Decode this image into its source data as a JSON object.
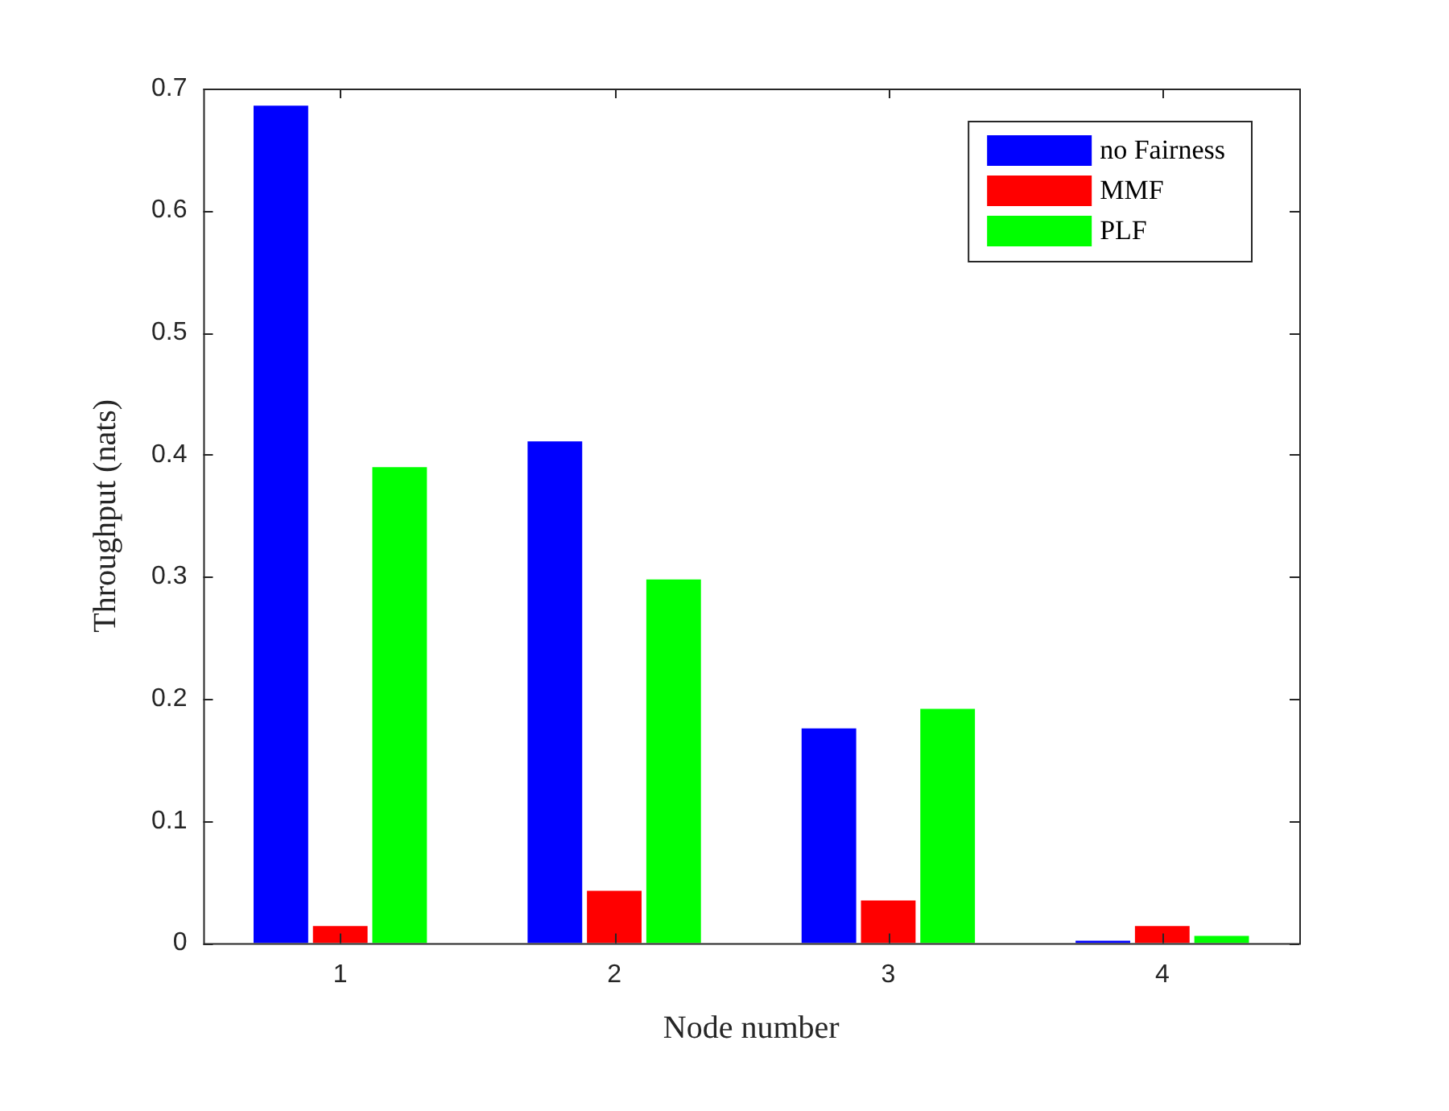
{
  "chart_data": {
    "type": "bar",
    "xlabel": "Node number",
    "ylabel": "Throughput (nats)",
    "categories": [
      "1",
      "2",
      "3",
      "4"
    ],
    "series": [
      {
        "name": "no Fairness",
        "color": "#0000ff",
        "values": [
          0.686,
          0.411,
          0.176,
          0.002
        ]
      },
      {
        "name": "MMF",
        "color": "#ff0000",
        "values": [
          0.014,
          0.043,
          0.035,
          0.014
        ]
      },
      {
        "name": "PLF",
        "color": "#00ff00",
        "values": [
          0.39,
          0.298,
          0.192,
          0.006
        ]
      }
    ],
    "ylim": [
      0,
      0.7
    ],
    "yticks": [
      0,
      0.1,
      0.2,
      0.3,
      0.4,
      0.5,
      0.6,
      0.7
    ],
    "grid": false,
    "legend": "top right"
  }
}
